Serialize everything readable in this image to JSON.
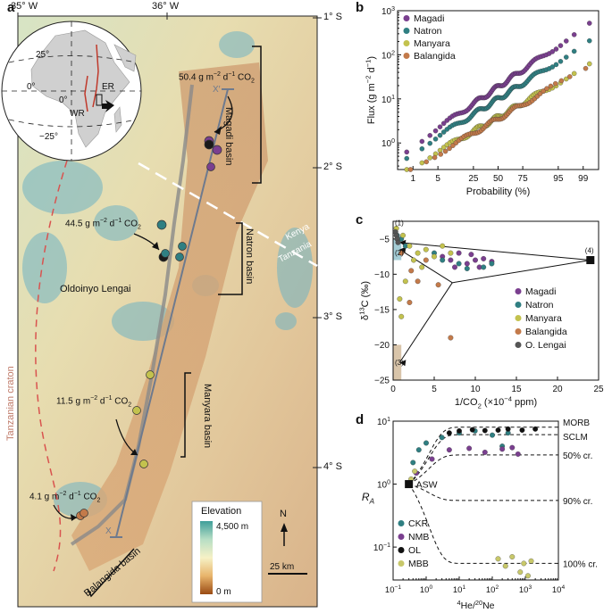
{
  "panel_letters": {
    "a": "a",
    "b": "b",
    "c": "c",
    "d": "d"
  },
  "colors": {
    "magadi": "#7a3f8f",
    "natron": "#2f7f82",
    "manyara": "#c3c24e",
    "balangida": "#c37a4a",
    "olengai": "#555555",
    "olengai_d": "#111111",
    "mbb": "#c8c86a"
  },
  "map": {
    "lon_labels": [
      "35° W",
      "36° W"
    ],
    "lat_labels": [
      "1° S",
      "2° S",
      "3° S",
      "4° S"
    ],
    "flux_labels": [
      {
        "pre": "50.4 g m",
        "s1": "−2",
        "mid": " d",
        "s2": "−1",
        "post": " CO",
        "sub": "2"
      },
      {
        "pre": "44.5 g m",
        "s1": "−2",
        "mid": " d",
        "s2": "−1",
        "post": " CO",
        "sub": "2"
      },
      {
        "pre": "11.5 g m",
        "s1": "−2",
        "mid": " d",
        "s2": "−1",
        "post": " CO",
        "sub": "2"
      },
      {
        "pre": "4.1 g m",
        "s1": "−2",
        "mid": " d",
        "s2": "−1",
        "post": " CO",
        "sub": "2"
      }
    ],
    "basins": [
      "Magadi basin",
      "Natron basin",
      "Manyara basin",
      "Balangida basin"
    ],
    "volcano": "Oldoinyo Lengai",
    "craton": "Tanzanian craton",
    "border": [
      "Kenya",
      "Tanzania"
    ],
    "transect_start": "X",
    "transect_end": "X′",
    "inset": {
      "lat_labels": [
        "25°",
        "0°",
        "−25°"
      ],
      "lon_label": "0°",
      "er": "ER",
      "wr": "WR"
    },
    "legend": {
      "title": "Elevation",
      "max": "4,500 m",
      "min": "0 m"
    },
    "north": "N",
    "scalebar": "25 km"
  },
  "chart_data": [
    {
      "panel": "b",
      "type": "scatter",
      "xlabel": "Probability (%)",
      "ylabel": "Flux (g m−2 d−1)",
      "ylabel_parts": {
        "pre": "Flux (g m",
        "s1": "−2",
        "mid": " d",
        "s2": "−1",
        "post": ")"
      },
      "yscale": "log",
      "ylim": [
        0.25,
        1000
      ],
      "x_ticks": [
        "1",
        "5",
        "25",
        "50",
        "75",
        "95",
        "99"
      ],
      "y_ticks": [
        {
          "base": "10",
          "exp": "0"
        },
        {
          "base": "10",
          "exp": "1"
        },
        {
          "base": "10",
          "exp": "2"
        },
        {
          "base": "10",
          "exp": "3"
        }
      ],
      "legend": [
        "Magadi",
        "Natron",
        "Manyara",
        "Balangida"
      ],
      "legend_position": "top-left",
      "series": [
        {
          "name": "Magadi",
          "color_key": "magadi",
          "n": 80,
          "min": 0.7,
          "max": 500
        },
        {
          "name": "Natron",
          "color_key": "natron",
          "n": 80,
          "min": 0.5,
          "max": 200
        },
        {
          "name": "Manyara",
          "color_key": "manyara",
          "n": 80,
          "min": 0.25,
          "max": 60
        },
        {
          "name": "Balangida",
          "color_key": "balangida",
          "n": 60,
          "min": 0.25,
          "max": 50
        }
      ]
    },
    {
      "panel": "c",
      "type": "scatter",
      "xlabel": "1/CO2 (×10−4 ppm)",
      "xlabel_parts": {
        "pre": "1/CO",
        "sub": "2",
        "mid": " (×10",
        "sup": "−4",
        "post": " ppm)"
      },
      "ylabel": "δ13C (‰)",
      "ylabel_parts": {
        "pre": "δ",
        "sup": "13",
        "post": "C (‰)"
      },
      "xlim": [
        0,
        25
      ],
      "ylim": [
        -25,
        -2.5
      ],
      "x_ticks": [
        0,
        5,
        10,
        15,
        20,
        25
      ],
      "y_ticks": [
        -5,
        -10,
        -15,
        -20,
        -25
      ],
      "legend": [
        "Magadi",
        "Natron",
        "Manyara",
        "Balangida",
        "O. Lengai"
      ],
      "legend_position": "center-right",
      "endmembers": [
        {
          "label": "(1)",
          "x": 0.3,
          "y": -3.0
        },
        {
          "label": "(2)",
          "x": 0.3,
          "y": -6.5
        },
        {
          "label": "(3)",
          "x": 0.3,
          "y": -21.0
        },
        {
          "label": "(4)",
          "x": 24,
          "y": -8
        }
      ],
      "series": [
        {
          "name": "Magadi",
          "color_key": "magadi",
          "points": [
            [
              6,
              -7.5
            ],
            [
              7,
              -8
            ],
            [
              8,
              -7
            ],
            [
              9,
              -8.5
            ],
            [
              10,
              -8
            ],
            [
              11,
              -7.8
            ],
            [
              12,
              -8.2
            ],
            [
              9.5,
              -7.2
            ],
            [
              7.5,
              -9
            ],
            [
              10.5,
              -9
            ]
          ]
        },
        {
          "name": "Natron",
          "color_key": "natron",
          "points": [
            [
              0.5,
              -4.5
            ],
            [
              1,
              -5
            ],
            [
              1.5,
              -6
            ],
            [
              5,
              -7
            ],
            [
              6,
              -8
            ],
            [
              8,
              -8.5
            ],
            [
              11,
              -9
            ],
            [
              12,
              -8.5
            ],
            [
              9,
              -9.2
            ]
          ]
        },
        {
          "name": "Manyara",
          "color_key": "manyara",
          "points": [
            [
              0.4,
              -3.5
            ],
            [
              1.2,
              -4.5
            ],
            [
              2,
              -6
            ],
            [
              2.5,
              -8
            ],
            [
              3,
              -7
            ],
            [
              4,
              -6.5
            ],
            [
              5,
              -7.5
            ],
            [
              6,
              -6
            ],
            [
              7,
              -7
            ],
            [
              1.5,
              -11
            ],
            [
              0.8,
              -13.5
            ],
            [
              1.0,
              -16
            ],
            [
              3.5,
              -9
            ]
          ]
        },
        {
          "name": "Balangida",
          "color_key": "balangida",
          "points": [
            [
              0.5,
              -5
            ],
            [
              1,
              -7
            ],
            [
              2.2,
              -9.5
            ],
            [
              3,
              -11
            ],
            [
              5.5,
              -11.5
            ],
            [
              4,
              -8
            ],
            [
              7,
              -19
            ],
            [
              2,
              -14
            ]
          ]
        },
        {
          "name": "O. Lengai",
          "color_key": "olengai",
          "points": [
            [
              0.3,
              -4
            ],
            [
              0.4,
              -4.5
            ],
            [
              0.5,
              -5
            ],
            [
              0.6,
              -5.5
            ]
          ]
        }
      ]
    },
    {
      "panel": "d",
      "type": "scatter",
      "xlabel": "4He/20Ne",
      "xlabel_parts": {
        "sup1": "4",
        "pre": "He/",
        "sup2": "20",
        "post": "Ne"
      },
      "ylabel": "RA",
      "ylabel_parts": {
        "pre": "R",
        "sub": "A"
      },
      "xscale": "log",
      "yscale": "log",
      "xlim": [
        0.1,
        10000
      ],
      "ylim": [
        0.03,
        10
      ],
      "x_ticks": [
        {
          "base": "10",
          "exp": "−1"
        },
        {
          "base": "10",
          "exp": "0"
        },
        {
          "base": "10",
          "exp": "1"
        },
        {
          "base": "10",
          "exp": "2"
        },
        {
          "base": "10",
          "exp": "3"
        },
        {
          "base": "10",
          "exp": "4"
        }
      ],
      "y_ticks": [
        {
          "base": "10",
          "exp": "−1"
        },
        {
          "base": "10",
          "exp": "0"
        },
        {
          "base": "10",
          "exp": "1"
        }
      ],
      "curve_labels": [
        "MORB",
        "SCLM",
        "50% cr.",
        "90% cr.",
        "100% cr."
      ],
      "curve_end_ra": [
        8,
        6.1,
        2.9,
        0.55,
        0.055
      ],
      "asw": {
        "label": "ASW",
        "x": 0.3,
        "y": 1
      },
      "legend": [
        "CKR",
        "NMB",
        "OL",
        "MBB"
      ],
      "legend_position": "bottom-left",
      "series": [
        {
          "name": "CKR",
          "color_key": "natron",
          "points": [
            [
              0.4,
              2.2
            ],
            [
              0.6,
              3.5
            ],
            [
              1,
              4.5
            ],
            [
              3,
              5.5
            ],
            [
              10,
              6.5
            ],
            [
              30,
              7
            ],
            [
              100,
              6
            ],
            [
              300,
              6.5
            ],
            [
              200,
              4
            ]
          ]
        },
        {
          "name": "NMB",
          "color_key": "magadi",
          "points": [
            [
              0.5,
              1.5
            ],
            [
              1.5,
              2.5
            ],
            [
              5,
              3.5
            ],
            [
              20,
              3.7
            ],
            [
              60,
              3.2
            ],
            [
              200,
              3.6
            ],
            [
              400,
              3.8
            ],
            [
              600,
              3
            ]
          ]
        },
        {
          "name": "OL",
          "color_key": "olengai_d",
          "points": [
            [
              5,
              6.5
            ],
            [
              10,
              7
            ],
            [
              25,
              7.3
            ],
            [
              60,
              7.1
            ],
            [
              150,
              7.2
            ],
            [
              300,
              7.5
            ],
            [
              800,
              7.2
            ],
            [
              2000,
              7.5
            ]
          ]
        },
        {
          "name": "MBB",
          "color_key": "mbb",
          "points": [
            [
              0.35,
              1.2
            ],
            [
              0.45,
              1.6
            ],
            [
              150,
              0.065
            ],
            [
              250,
              0.05
            ],
            [
              400,
              0.07
            ],
            [
              700,
              0.04
            ],
            [
              900,
              0.055
            ],
            [
              1500,
              0.06
            ],
            [
              1200,
              0.035
            ]
          ]
        }
      ]
    }
  ]
}
